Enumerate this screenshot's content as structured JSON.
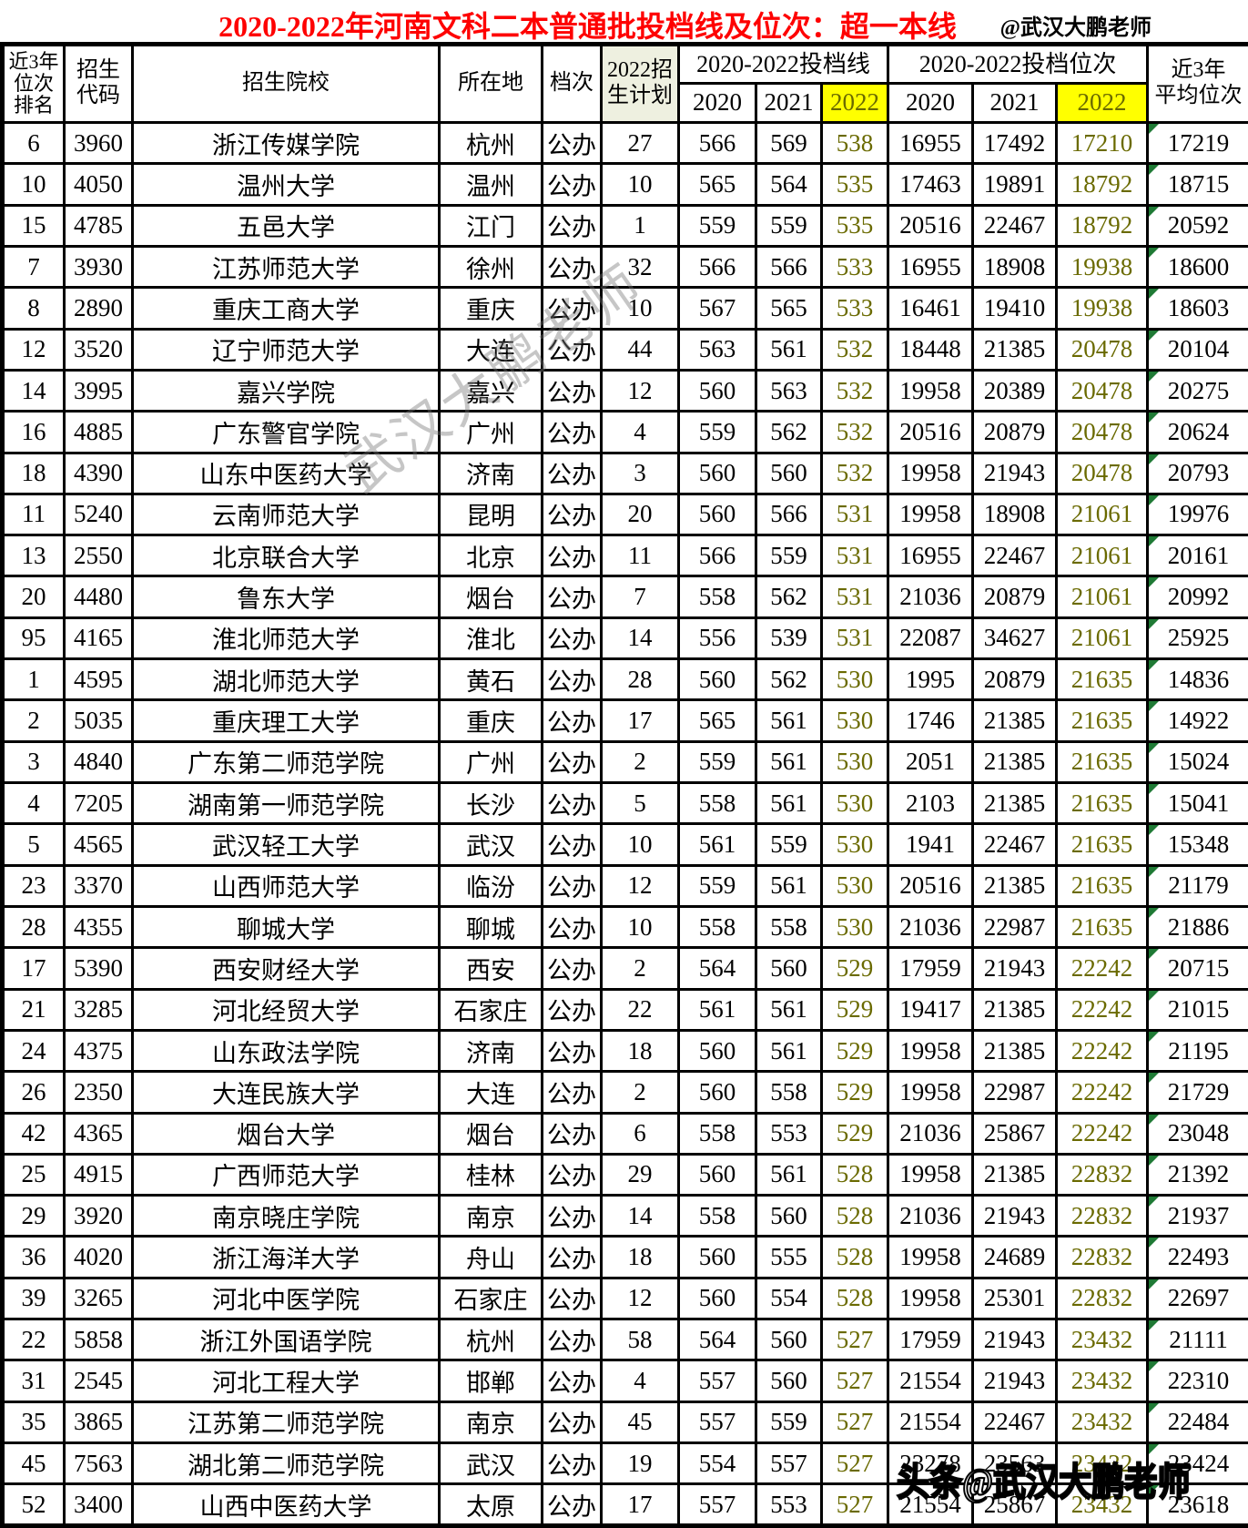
{
  "title": "2020-2022年河南文科二本普通批投档线及位次：超一本线",
  "author_handle": "@武汉大鹏老师",
  "watermark": {
    "diagonal": "武汉大鹏老师",
    "bottom": "头条@武汉大鹏老师"
  },
  "colors": {
    "title_red": "#fe0000",
    "highlight_yellow": "#ffff00",
    "yellow_text_olive": "#6a6a00",
    "public_green": "#92d050",
    "plan_header_bg": "#eef0e0",
    "triangle_green": "#1f7a35",
    "border_black": "#000000"
  },
  "chart_data": {
    "type": "table",
    "title": "2020-2022年河南文科二本普通批投档线及位次：超一本线",
    "column_headers": {
      "rank3yr": "近3年\n位次\n排名",
      "code": "招生\n代码",
      "school": "招生院校",
      "city": "所在地",
      "level": "档次",
      "plan2022": "2022招\n生计划",
      "score_group": "2020-2022投档线",
      "rank_group": "2020-2022投档位次",
      "years": [
        "2020",
        "2021",
        "2022"
      ],
      "avg3yr": "近3年\n平均位次"
    },
    "columns": [
      "近3年位次排名",
      "招生代码",
      "招生院校",
      "所在地",
      "档次",
      "2022招生计划",
      "2020投档线",
      "2021投档线",
      "2022投档线",
      "2020投档位次",
      "2021投档位次",
      "2022投档位次",
      "近3年平均位次"
    ],
    "rows": [
      [
        "6",
        "3960",
        "浙江传媒学院",
        "杭州",
        "公办",
        "27",
        "566",
        "569",
        "538",
        "16955",
        "17492",
        "17210",
        "17219"
      ],
      [
        "10",
        "4050",
        "温州大学",
        "温州",
        "公办",
        "10",
        "565",
        "564",
        "535",
        "17463",
        "19891",
        "18792",
        "18715"
      ],
      [
        "15",
        "4785",
        "五邑大学",
        "江门",
        "公办",
        "1",
        "559",
        "559",
        "535",
        "20516",
        "22467",
        "18792",
        "20592"
      ],
      [
        "7",
        "3930",
        "江苏师范大学",
        "徐州",
        "公办",
        "32",
        "566",
        "566",
        "533",
        "16955",
        "18908",
        "19938",
        "18600"
      ],
      [
        "8",
        "2890",
        "重庆工商大学",
        "重庆",
        "公办",
        "10",
        "567",
        "565",
        "533",
        "16461",
        "19410",
        "19938",
        "18603"
      ],
      [
        "12",
        "3520",
        "辽宁师范大学",
        "大连",
        "公办",
        "44",
        "563",
        "561",
        "532",
        "18448",
        "21385",
        "20478",
        "20104"
      ],
      [
        "14",
        "3995",
        "嘉兴学院",
        "嘉兴",
        "公办",
        "12",
        "560",
        "563",
        "532",
        "19958",
        "20389",
        "20478",
        "20275"
      ],
      [
        "16",
        "4885",
        "广东警官学院",
        "广州",
        "公办",
        "4",
        "559",
        "562",
        "532",
        "20516",
        "20879",
        "20478",
        "20624"
      ],
      [
        "18",
        "4390",
        "山东中医药大学",
        "济南",
        "公办",
        "3",
        "560",
        "560",
        "532",
        "19958",
        "21943",
        "20478",
        "20793"
      ],
      [
        "11",
        "5240",
        "云南师范大学",
        "昆明",
        "公办",
        "20",
        "560",
        "566",
        "531",
        "19958",
        "18908",
        "21061",
        "19976"
      ],
      [
        "13",
        "2550",
        "北京联合大学",
        "北京",
        "公办",
        "11",
        "566",
        "559",
        "531",
        "16955",
        "22467",
        "21061",
        "20161"
      ],
      [
        "20",
        "4480",
        "鲁东大学",
        "烟台",
        "公办",
        "7",
        "558",
        "562",
        "531",
        "21036",
        "20879",
        "21061",
        "20992"
      ],
      [
        "95",
        "4165",
        "淮北师范大学",
        "淮北",
        "公办",
        "14",
        "556",
        "539",
        "531",
        "22087",
        "34627",
        "21061",
        "25925"
      ],
      [
        "1",
        "4595",
        "湖北师范大学",
        "黄石",
        "公办",
        "28",
        "560",
        "562",
        "530",
        "1995",
        "20879",
        "21635",
        "14836"
      ],
      [
        "2",
        "5035",
        "重庆理工大学",
        "重庆",
        "公办",
        "17",
        "565",
        "561",
        "530",
        "1746",
        "21385",
        "21635",
        "14922"
      ],
      [
        "3",
        "4840",
        "广东第二师范学院",
        "广州",
        "公办",
        "2",
        "559",
        "561",
        "530",
        "2051",
        "21385",
        "21635",
        "15024"
      ],
      [
        "4",
        "7205",
        "湖南第一师范学院",
        "长沙",
        "公办",
        "5",
        "558",
        "561",
        "530",
        "2103",
        "21385",
        "21635",
        "15041"
      ],
      [
        "5",
        "4565",
        "武汉轻工大学",
        "武汉",
        "公办",
        "10",
        "561",
        "559",
        "530",
        "1941",
        "22467",
        "21635",
        "15348"
      ],
      [
        "23",
        "3370",
        "山西师范大学",
        "临汾",
        "公办",
        "12",
        "559",
        "561",
        "530",
        "20516",
        "21385",
        "21635",
        "21179"
      ],
      [
        "28",
        "4355",
        "聊城大学",
        "聊城",
        "公办",
        "10",
        "558",
        "558",
        "530",
        "21036",
        "22987",
        "21635",
        "21886"
      ],
      [
        "17",
        "5390",
        "西安财经大学",
        "西安",
        "公办",
        "2",
        "564",
        "560",
        "529",
        "17959",
        "21943",
        "22242",
        "20715"
      ],
      [
        "21",
        "3285",
        "河北经贸大学",
        "石家庄",
        "公办",
        "22",
        "561",
        "561",
        "529",
        "19417",
        "21385",
        "22242",
        "21015"
      ],
      [
        "24",
        "4375",
        "山东政法学院",
        "济南",
        "公办",
        "18",
        "560",
        "561",
        "529",
        "19958",
        "21385",
        "22242",
        "21195"
      ],
      [
        "26",
        "2350",
        "大连民族大学",
        "大连",
        "公办",
        "2",
        "560",
        "558",
        "529",
        "19958",
        "22987",
        "22242",
        "21729"
      ],
      [
        "42",
        "4365",
        "烟台大学",
        "烟台",
        "公办",
        "6",
        "558",
        "553",
        "529",
        "21036",
        "25867",
        "22242",
        "23048"
      ],
      [
        "25",
        "4915",
        "广西师范大学",
        "桂林",
        "公办",
        "29",
        "560",
        "561",
        "528",
        "19958",
        "21385",
        "22832",
        "21392"
      ],
      [
        "29",
        "3920",
        "南京晓庄学院",
        "南京",
        "公办",
        "14",
        "558",
        "560",
        "528",
        "21036",
        "21943",
        "22832",
        "21937"
      ],
      [
        "36",
        "4020",
        "浙江海洋大学",
        "舟山",
        "公办",
        "18",
        "560",
        "555",
        "528",
        "19958",
        "24689",
        "22832",
        "22493"
      ],
      [
        "39",
        "3265",
        "河北中医学院",
        "石家庄",
        "公办",
        "12",
        "560",
        "554",
        "528",
        "19958",
        "25301",
        "22832",
        "22697"
      ],
      [
        "22",
        "5858",
        "浙江外国语学院",
        "杭州",
        "公办",
        "58",
        "564",
        "560",
        "527",
        "17959",
        "21943",
        "23432",
        "21111"
      ],
      [
        "31",
        "2545",
        "河北工程大学",
        "邯郸",
        "公办",
        "4",
        "557",
        "560",
        "527",
        "21554",
        "21943",
        "23432",
        "22310"
      ],
      [
        "35",
        "3865",
        "江苏第二师范学院",
        "南京",
        "公办",
        "45",
        "557",
        "559",
        "527",
        "21554",
        "22467",
        "23432",
        "22484"
      ],
      [
        "45",
        "7563",
        "湖北第二师范学院",
        "武汉",
        "公办",
        "19",
        "554",
        "557",
        "527",
        "23278",
        "23563",
        "23432",
        "23424"
      ],
      [
        "52",
        "3400",
        "山西中医药大学",
        "太原",
        "公办",
        "17",
        "557",
        "553",
        "527",
        "21554",
        "25867",
        "23432",
        "23618"
      ]
    ]
  }
}
